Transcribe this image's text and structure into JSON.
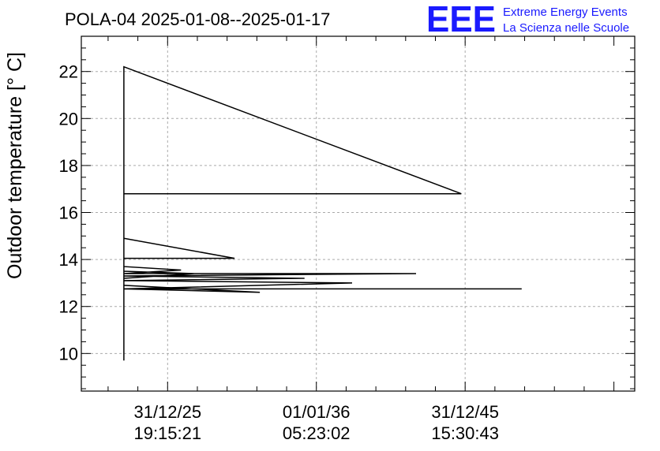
{
  "chart_data": {
    "type": "line",
    "title": "POLA-04 2025-01-08--2025-01-17",
    "xlabel": "",
    "ylabel": "Outdoor temperature [° C]",
    "ylim": [
      8.4,
      23.5
    ],
    "xlim": [
      -0.29,
      1.57
    ],
    "grid": true,
    "yticks": [
      10,
      12,
      14,
      16,
      18,
      20,
      22
    ],
    "xticks": [
      {
        "pos": 0,
        "date": "31/12/25",
        "time": "19:15:21"
      },
      {
        "pos": 0.5,
        "date": "01/01/36",
        "time": "05:23:02"
      },
      {
        "pos": 1,
        "date": "31/12/45",
        "time": "15:30:43"
      }
    ],
    "series": [
      {
        "name": "POLA-04",
        "x": [
          -0.147,
          -0.147,
          -0.147,
          -0.147,
          0.987,
          -0.147,
          -0.147,
          -0.147,
          0.225,
          -0.147,
          -0.147,
          -0.147,
          0.045,
          -0.147,
          0.835,
          -0.147,
          0.46,
          -0.147,
          0.62,
          -0.147,
          1.19,
          -0.147,
          0.31,
          -0.147,
          -0.147,
          0.09,
          -0.147,
          -0.147,
          -0.147,
          -0.147
        ],
        "y": [
          9.7,
          11.2,
          13.3,
          22.2,
          16.8,
          16.8,
          14.9,
          14.9,
          14.05,
          14.05,
          13.7,
          13.7,
          13.55,
          13.4,
          13.4,
          13.3,
          13.2,
          13.1,
          13.0,
          12.75,
          12.75,
          12.75,
          12.6,
          12.9,
          13.2,
          13.4,
          13.5,
          12.95,
          12.75,
          11.0
        ]
      }
    ]
  },
  "logo": {
    "letters": "EEE",
    "line1": "Extreme Energy Events",
    "line2": "La Scienza nelle Scuole"
  }
}
